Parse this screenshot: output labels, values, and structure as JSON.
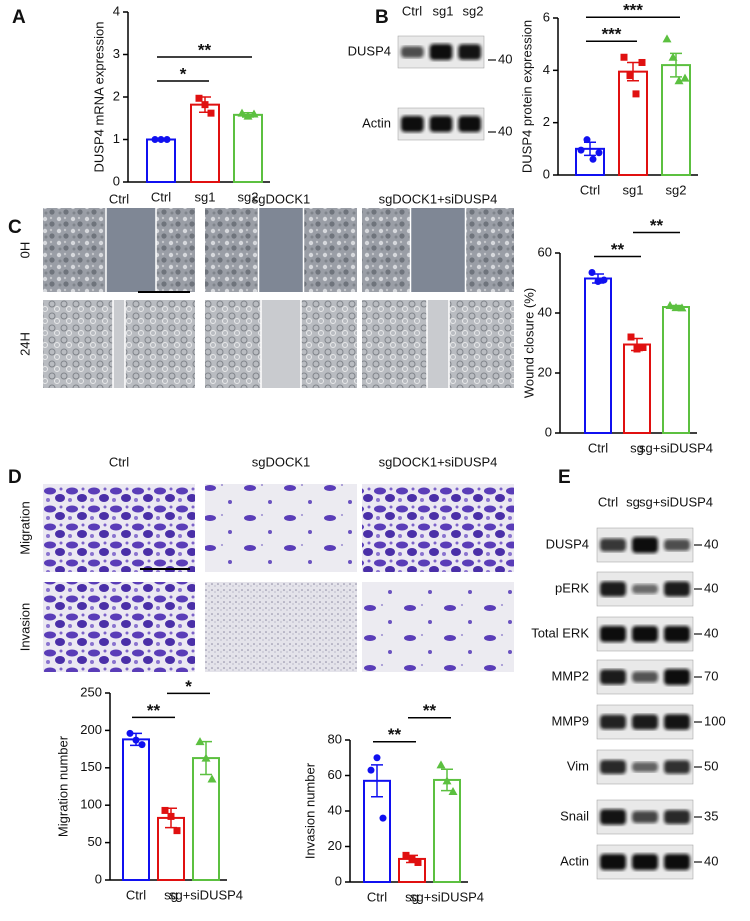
{
  "panels": [
    "A",
    "B",
    "C",
    "D",
    "E"
  ],
  "blots": {
    "B": {
      "lanes": [
        "Ctrl",
        "sg1",
        "sg2"
      ],
      "rows": [
        {
          "label": "DUSP4",
          "marker": "40"
        },
        {
          "label": "Actin",
          "marker": "40"
        }
      ]
    },
    "E": {
      "lanes": [
        "Ctrl",
        "sg",
        "sg+siDUSP4"
      ],
      "rows": [
        {
          "label": "DUSP4",
          "marker": "40"
        },
        {
          "label": "pERK",
          "marker": "40"
        },
        {
          "label": "Total ERK",
          "marker": "40"
        },
        {
          "label": "MMP2",
          "marker": "70"
        },
        {
          "label": "MMP9",
          "marker": "100"
        },
        {
          "label": "Vim",
          "marker": "50"
        },
        {
          "label": "Snail",
          "marker": "35"
        },
        {
          "label": "Actin",
          "marker": "40"
        }
      ]
    }
  },
  "images": {
    "C": {
      "columns": [
        "Ctrl",
        "sgDOCK1",
        "sgDOCK1+siDUSP4"
      ],
      "rows": [
        "0H",
        "24H"
      ]
    },
    "D": {
      "columns": [
        "Ctrl",
        "sgDOCK1",
        "sgDOCK1+siDUSP4"
      ],
      "rows": [
        "Migration",
        "Invasion"
      ]
    }
  },
  "chart_data": [
    {
      "type": "bar",
      "ylabel": "DUSP4 mRNA expression",
      "categories": [
        "Ctrl",
        "sg1",
        "sg2"
      ],
      "colors": [
        "#1010f0",
        "#e01010",
        "#5cc040"
      ],
      "values": [
        1.0,
        1.82,
        1.58
      ],
      "errors": [
        0.01,
        0.18,
        0.05
      ],
      "points": [
        [
          1.0,
          1.0,
          1.0
        ],
        [
          1.97,
          1.82,
          1.62
        ],
        [
          1.62,
          1.55,
          1.6
        ]
      ],
      "ylim": [
        0,
        4
      ],
      "yticks": [
        0,
        1,
        2,
        3,
        4
      ],
      "annotations": [
        {
          "text": "*",
          "from": 0,
          "to": 1
        },
        {
          "text": "**",
          "from": 0,
          "to": 2
        }
      ]
    },
    {
      "type": "bar",
      "ylabel": "DUSP4 protein expression",
      "categories": [
        "Ctrl",
        "sg1",
        "sg2"
      ],
      "colors": [
        "#1010f0",
        "#e01010",
        "#5cc040"
      ],
      "values": [
        1.0,
        3.95,
        4.2
      ],
      "errors": [
        0.25,
        0.35,
        0.45
      ],
      "points": [
        [
          0.95,
          1.35,
          0.6,
          0.85
        ],
        [
          4.5,
          3.8,
          3.1,
          4.3
        ],
        [
          5.2,
          4.5,
          3.6,
          3.7
        ]
      ],
      "ylim": [
        0,
        6
      ],
      "yticks": [
        0,
        2,
        4,
        6
      ],
      "annotations": [
        {
          "text": "***",
          "from": 0,
          "to": 1
        },
        {
          "text": "***",
          "from": 0,
          "to": 2
        }
      ]
    },
    {
      "type": "bar",
      "ylabel": "Wound closure (%)",
      "categories": [
        "Ctrl",
        "sg",
        "sg+siDUSP4"
      ],
      "colors": [
        "#1010f0",
        "#e01010",
        "#5cc040"
      ],
      "values": [
        51.5,
        29.5,
        42
      ],
      "errors": [
        1.5,
        2,
        0.5
      ],
      "points": [
        [
          53.5,
          50.5,
          51
        ],
        [
          32,
          28,
          28.5
        ],
        [
          42.5,
          41.8,
          41.7
        ]
      ],
      "ylim": [
        0,
        60
      ],
      "yticks": [
        0,
        20,
        40,
        60
      ],
      "annotations": [
        {
          "text": "**",
          "from": 0,
          "to": 1
        },
        {
          "text": "**",
          "from": 1,
          "to": 2
        }
      ]
    },
    {
      "type": "bar",
      "ylabel": "Migration number",
      "categories": [
        "Ctrl",
        "sg",
        "sg+siDUSP4"
      ],
      "colors": [
        "#1010f0",
        "#e01010",
        "#5cc040"
      ],
      "values": [
        188,
        83,
        163
      ],
      "errors": [
        8,
        13,
        22
      ],
      "points": [
        [
          196,
          187,
          181
        ],
        [
          93,
          85,
          66
        ],
        [
          185,
          163,
          135
        ]
      ],
      "ylim": [
        0,
        250
      ],
      "yticks": [
        0,
        50,
        100,
        150,
        200,
        250
      ],
      "annotations": [
        {
          "text": "**",
          "from": 0,
          "to": 1
        },
        {
          "text": "*",
          "from": 1,
          "to": 2
        }
      ]
    },
    {
      "type": "bar",
      "ylabel": "Invasion number",
      "categories": [
        "Ctrl",
        "sg",
        "sg+siDUSP4"
      ],
      "colors": [
        "#1010f0",
        "#e01010",
        "#5cc040"
      ],
      "values": [
        57,
        13,
        57.5
      ],
      "errors": [
        9,
        2,
        6
      ],
      "points": [
        [
          63,
          70,
          36
        ],
        [
          15,
          13,
          11
        ],
        [
          66,
          57,
          51
        ]
      ],
      "ylim": [
        0,
        80
      ],
      "yticks": [
        0,
        20,
        40,
        60,
        80
      ],
      "annotations": [
        {
          "text": "**",
          "from": 0,
          "to": 1
        },
        {
          "text": "**",
          "from": 1,
          "to": 2
        }
      ]
    }
  ]
}
